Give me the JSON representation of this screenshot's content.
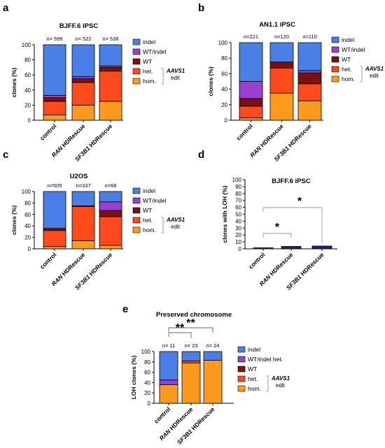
{
  "chart_data": [
    {
      "panel": "a",
      "type": "bar",
      "stacked": true,
      "title": "BJFF.6 iPSC",
      "ylabel": "clones (%)",
      "ylim": [
        0,
        100
      ],
      "yticks": [
        0,
        20,
        40,
        60,
        80,
        100
      ],
      "categories": [
        "control",
        "RAN HDRescue",
        "SF3B1 HDRescue"
      ],
      "n_labels": [
        "n= 599",
        "n= 522",
        "n= 538"
      ],
      "series": [
        {
          "name": "hom.",
          "color": "#ff9a1f",
          "values": [
            7,
            20,
            25
          ]
        },
        {
          "name": "het.",
          "color": "#ff4a1c",
          "values": [
            18,
            30,
            40
          ]
        },
        {
          "name": "WT",
          "color": "#7a1010",
          "values": [
            5,
            5,
            5
          ]
        },
        {
          "name": "WT/indel",
          "color": "#9b3fd4",
          "values": [
            3,
            3,
            2
          ]
        },
        {
          "name": "indel",
          "color": "#4a7fe8",
          "values": [
            67,
            42,
            28
          ]
        }
      ],
      "legend_order": [
        "indel",
        "WT/indel",
        "WT",
        "het.",
        "hom."
      ],
      "bracket_label_1": "AAVS1",
      "bracket_label_2": "edit"
    },
    {
      "panel": "b",
      "type": "bar",
      "stacked": true,
      "title": "AN1.1 iPSC",
      "ylabel": "clones (%)",
      "ylim": [
        0,
        100
      ],
      "yticks": [
        0,
        20,
        40,
        60,
        80,
        100
      ],
      "categories": [
        "control",
        "RAN HDRescue",
        "SF3B1 HDRescue"
      ],
      "n_labels": [
        "n=221",
        "n=120",
        "n=110"
      ],
      "series": [
        {
          "name": "hom.",
          "color": "#ff9a1f",
          "values": [
            3,
            35,
            25
          ]
        },
        {
          "name": "het.",
          "color": "#ff4a1c",
          "values": [
            15,
            32,
            22
          ]
        },
        {
          "name": "WT",
          "color": "#7a1010",
          "values": [
            10,
            8,
            14
          ]
        },
        {
          "name": "WT/indel",
          "color": "#9b3fd4",
          "values": [
            22,
            0,
            3
          ]
        },
        {
          "name": "indel",
          "color": "#4a7fe8",
          "values": [
            50,
            25,
            36
          ]
        }
      ],
      "legend_order": [
        "indel",
        "WT/indel",
        "WT",
        "het.",
        "hom."
      ],
      "bracket_label_1": "AAVS1",
      "bracket_label_2": "edit"
    },
    {
      "panel": "c",
      "type": "bar",
      "stacked": true,
      "title": "U2OS",
      "ylabel": "clones (%)",
      "ylim": [
        0,
        100
      ],
      "yticks": [
        0,
        20,
        40,
        60,
        80,
        100
      ],
      "categories": [
        "control",
        "RAN HDRescue",
        "SF3B1 HDRescue"
      ],
      "n_labels": [
        "n=505",
        "n=337",
        "n=68"
      ],
      "series": [
        {
          "name": "hom.",
          "color": "#ff9a1f",
          "values": [
            4,
            14,
            6
          ]
        },
        {
          "name": "het.",
          "color": "#ff4a1c",
          "values": [
            28,
            60,
            50
          ]
        },
        {
          "name": "WT",
          "color": "#7a1010",
          "values": [
            2,
            1,
            11
          ]
        },
        {
          "name": "WT/indel",
          "color": "#9b3fd4",
          "values": [
            2,
            0,
            15
          ]
        },
        {
          "name": "indel",
          "color": "#4a7fe8",
          "values": [
            64,
            25,
            18
          ]
        }
      ],
      "legend_order": [
        "indel",
        "WT/indel",
        "WT",
        "het.",
        "hom."
      ],
      "bracket_label_1": "AAVS1",
      "bracket_label_2": "edit"
    },
    {
      "panel": "d",
      "type": "bar",
      "stacked": false,
      "title": "BJFF.6 iPSC",
      "ylabel": "clones with LOH (%)",
      "ylim": [
        0,
        100
      ],
      "yticks": [
        0,
        10,
        20,
        30,
        40,
        50,
        60,
        70,
        80,
        90,
        100
      ],
      "categories": [
        "control",
        "RAN HDRescue",
        "SF3B1 HDRescue"
      ],
      "bar_color": "#1a237e",
      "values": [
        1.5,
        3.5,
        4
      ],
      "significance": [
        {
          "from": 0,
          "to": 1,
          "label": "*"
        },
        {
          "from": 0,
          "to": 2,
          "label": "*"
        }
      ]
    },
    {
      "panel": "e",
      "type": "bar",
      "stacked": true,
      "title": "Preserved chromosome",
      "ylabel": "LOH clones (%)",
      "ylim": [
        0,
        100
      ],
      "yticks": [
        0,
        20,
        40,
        60,
        80,
        100
      ],
      "categories": [
        "control",
        "RAN HDRescue",
        "SF3B1 HDRescue"
      ],
      "n_labels": [
        "n= 11",
        "n= 23",
        "n= 24"
      ],
      "series": [
        {
          "name": "hom.",
          "color": "#ff9a1f",
          "values": [
            36,
            78,
            83
          ]
        },
        {
          "name": "het.",
          "color": "#ff4a1c",
          "values": [
            0,
            4,
            0
          ]
        },
        {
          "name": "WT",
          "color": "#7a1010",
          "values": [
            0,
            0,
            0
          ]
        },
        {
          "name": "WT/indel het.",
          "color": "#9b3fd4",
          "values": [
            9,
            0,
            0
          ]
        },
        {
          "name": "indel",
          "color": "#4a7fe8",
          "values": [
            55,
            18,
            17
          ]
        }
      ],
      "legend_order": [
        "indel",
        "WT/indel het.",
        "WT",
        "het.",
        "hom."
      ],
      "bracket_label_1": "AAVS1",
      "bracket_label_2": "edit",
      "significance": [
        {
          "from": 0,
          "to": 1,
          "label": "**"
        },
        {
          "from": 0,
          "to": 2,
          "label": "**"
        }
      ]
    }
  ]
}
